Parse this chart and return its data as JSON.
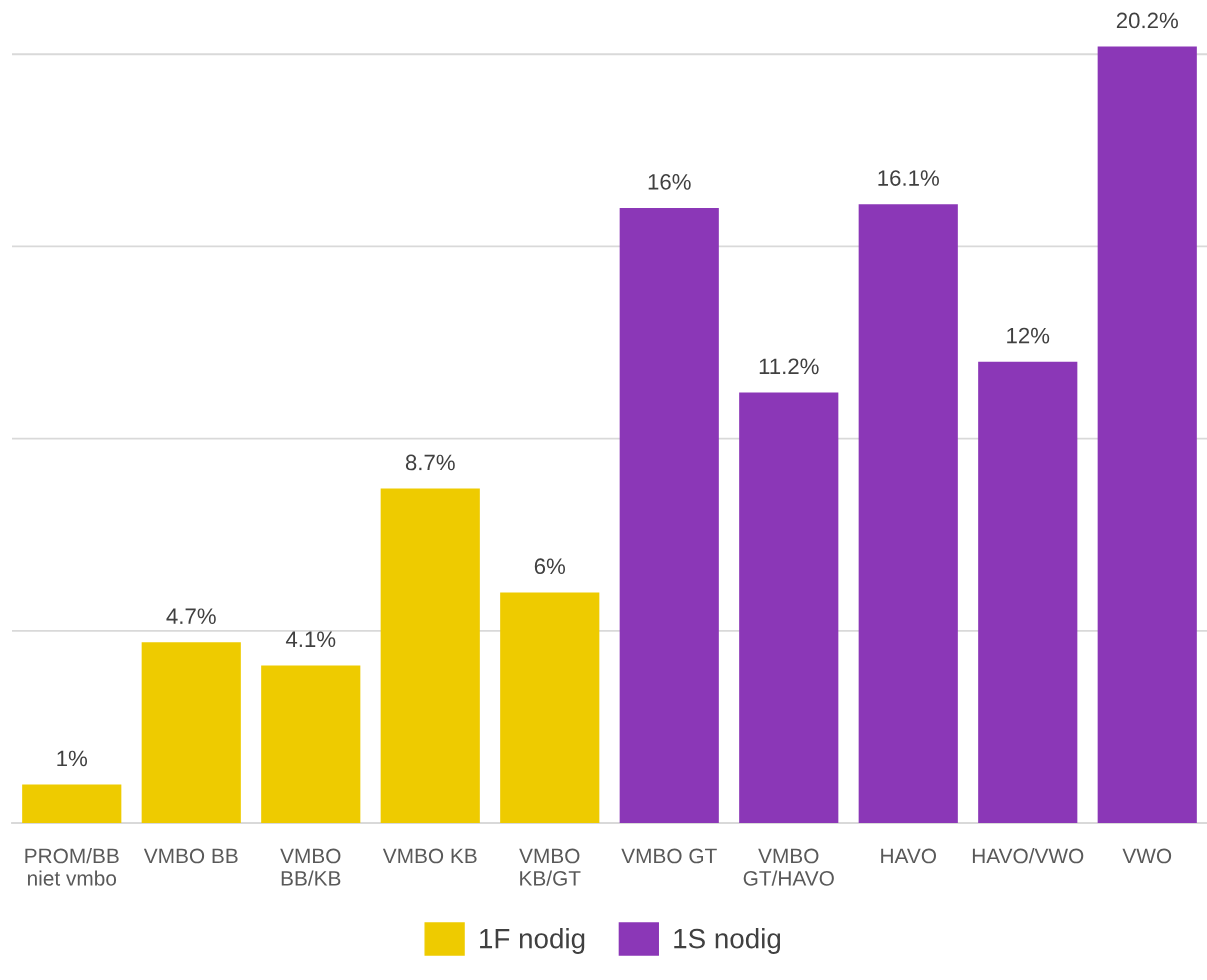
{
  "chart_data": {
    "type": "bar",
    "categories": [
      "PROM/BB\nniet vmbo",
      "VMBO BB",
      "VMBO\nBB/KB",
      "VMBO KB",
      "VMBO\nKB/GT",
      "VMBO GT",
      "VMBO\nGT/HAVO",
      "HAVO",
      "HAVO/VWO",
      "VWO"
    ],
    "series": [
      {
        "name": "1F nodig",
        "color": "#eecb00",
        "values": [
          1,
          4.7,
          4.1,
          8.7,
          6,
          null,
          null,
          null,
          null,
          null
        ],
        "value_labels": [
          "1%",
          "4.7%",
          "4.1%",
          "8.7%",
          "6%",
          null,
          null,
          null,
          null,
          null
        ]
      },
      {
        "name": "1S nodig",
        "color": "#8b37b7",
        "values": [
          null,
          null,
          null,
          null,
          null,
          16,
          11.2,
          16.1,
          12,
          20.2
        ],
        "value_labels": [
          null,
          null,
          null,
          null,
          null,
          "16%",
          "11.2%",
          "16.1%",
          "12%",
          "20.2%"
        ]
      }
    ],
    "yticks": [
      {
        "value": 0,
        "label": null
      },
      {
        "value": 5,
        "label": null
      },
      {
        "value": 10,
        "label": null
      },
      {
        "value": 15,
        "label": null
      },
      {
        "value": 20,
        "label": null
      }
    ],
    "tick_labels": "x",
    "grid": "y",
    "legend": "bottom"
  }
}
